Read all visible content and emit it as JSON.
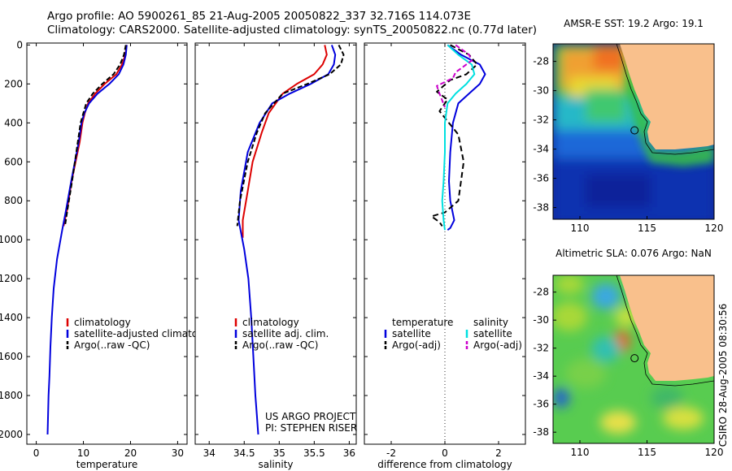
{
  "header": {
    "line1": "Argo profile: AO 5900261_85 21-Aug-2005 20050822_337 32.716S 114.073E",
    "line2": "Climatology: CARS2000. Satellite-adjusted climatology: synTS_20050822.nc (0.77d later)"
  },
  "side_label": "CSIRO 28-Aug-2005 08:30:56",
  "colors": {
    "climatology": "#dd0000",
    "satellite": "#0000dd",
    "argo": "#000000",
    "satellite_salinity": "#00e0e0",
    "argo_salinity": "#cc00cc",
    "land": "#f9c08c"
  },
  "chart_data": [
    {
      "type": "line",
      "xlabel": "temperature",
      "ylabel": "",
      "xlim": [
        -2,
        32
      ],
      "ylim": [
        2050,
        -10
      ],
      "y_reversed": true,
      "xticks": [
        0,
        10,
        20,
        30
      ],
      "yticks": [
        0,
        200,
        400,
        600,
        800,
        1000,
        1200,
        1400,
        1600,
        1800,
        2000
      ],
      "legend_position": "lower-right",
      "series": [
        {
          "name": "climatology",
          "color": "#dd0000",
          "dash": "",
          "x": [
            19.2,
            18.9,
            18.2,
            17.0,
            14.5,
            12.5,
            11.0,
            10.3,
            9.8,
            9.2,
            7.5,
            6.5,
            5.8
          ],
          "y": [
            0,
            50,
            100,
            150,
            200,
            250,
            300,
            350,
            400,
            500,
            700,
            850,
            930
          ]
        },
        {
          "name": "satellite-adjusted climatology",
          "color": "#0000dd",
          "dash": "",
          "x": [
            19.2,
            19.0,
            18.5,
            17.5,
            15.5,
            13.0,
            11.2,
            10.2,
            9.6,
            9.0,
            7.4,
            6.3,
            5.5,
            4.4,
            3.7,
            3.3,
            3.0,
            2.8,
            2.6,
            2.5,
            2.4
          ],
          "y": [
            0,
            50,
            100,
            150,
            200,
            250,
            300,
            350,
            400,
            500,
            700,
            850,
            950,
            1100,
            1250,
            1400,
            1550,
            1700,
            1800,
            1900,
            2000
          ]
        },
        {
          "name": "Argo(..raw -QC)",
          "color": "#000000",
          "dash": "6,3",
          "x": [
            19.0,
            18.6,
            17.8,
            16.4,
            14.0,
            12.0,
            10.6,
            10.0,
            9.4,
            8.8,
            7.6,
            6.6,
            6.1
          ],
          "y": [
            0,
            50,
            100,
            150,
            200,
            250,
            300,
            350,
            400,
            500,
            700,
            850,
            930
          ]
        }
      ],
      "legend": [
        "climatology",
        "satellite-adjusted climatology",
        "Argo(..raw -QC)"
      ]
    },
    {
      "type": "line",
      "xlabel": "salinity",
      "ylabel": "",
      "xlim": [
        33.8,
        36.1
      ],
      "ylim": [
        2050,
        -10
      ],
      "y_reversed": true,
      "xticks": [
        34,
        34.5,
        35,
        35.5,
        36
      ],
      "annotation": [
        "US ARGO PROJECT",
        "PI: STEPHEN RISER"
      ],
      "legend_position": "lower-right",
      "series": [
        {
          "name": "climatology",
          "color": "#dd0000",
          "dash": "",
          "x": [
            35.65,
            35.68,
            35.62,
            35.5,
            35.25,
            35.05,
            34.85,
            34.75,
            34.62,
            34.55,
            34.48,
            34.48
          ],
          "y": [
            0,
            50,
            100,
            150,
            200,
            250,
            350,
            450,
            600,
            750,
            900,
            990
          ]
        },
        {
          "name": "satellite adj. clim.",
          "color": "#0000dd",
          "dash": "",
          "x": [
            35.75,
            35.8,
            35.78,
            35.7,
            35.45,
            35.15,
            34.9,
            34.72,
            34.55,
            34.45,
            34.42,
            34.5,
            34.56,
            34.6,
            34.63,
            34.66,
            34.68,
            34.7
          ],
          "y": [
            0,
            50,
            100,
            150,
            200,
            250,
            300,
            400,
            550,
            750,
            900,
            1050,
            1200,
            1400,
            1600,
            1800,
            1900,
            2000
          ]
        },
        {
          "name": "Argo(..raw -QC)",
          "color": "#000000",
          "dash": "6,3",
          "x": [
            35.85,
            35.92,
            35.88,
            35.72,
            35.4,
            35.05,
            34.8,
            34.68,
            34.55,
            34.44,
            34.4
          ],
          "y": [
            0,
            50,
            100,
            150,
            200,
            250,
            350,
            450,
            600,
            800,
            930
          ]
        }
      ],
      "legend": [
        "climatology",
        "satellite adj. clim.",
        "Argo(..raw -QC)"
      ]
    },
    {
      "type": "line",
      "xlabel": "difference from climatology",
      "ylabel": "",
      "xlim": [
        -3,
        3
      ],
      "ylim": [
        2050,
        -10
      ],
      "y_reversed": true,
      "xticks": [
        -2,
        0,
        2
      ],
      "legend_position": "lower-right",
      "legend_headers": [
        "temperature",
        "salinity"
      ],
      "series": [
        {
          "name": "satellite",
          "group": "temperature",
          "color": "#0000dd",
          "dash": "",
          "x": [
            0.1,
            0.6,
            1.3,
            1.5,
            1.3,
            0.9,
            0.5,
            0.3,
            0.2,
            0.15,
            0.2,
            0.35,
            0.2,
            0.1
          ],
          "y": [
            0,
            50,
            100,
            150,
            200,
            250,
            300,
            400,
            550,
            700,
            800,
            900,
            940,
            950
          ]
        },
        {
          "name": "Argo(-adj)",
          "group": "temperature",
          "color": "#000000",
          "dash": "7,4",
          "x": [
            0.2,
            0.9,
            1.2,
            0.8,
            0.2,
            -0.3,
            0.1,
            -0.2,
            0.5,
            0.7,
            0.6,
            0.5,
            0.0,
            -0.5,
            -0.2,
            -0.1
          ],
          "y": [
            0,
            50,
            100,
            150,
            180,
            240,
            280,
            340,
            460,
            600,
            700,
            800,
            860,
            880,
            910,
            930
          ]
        },
        {
          "name": "satellite",
          "group": "salinity",
          "color": "#00e0e0",
          "dash": "",
          "x": [
            0.1,
            0.5,
            1.0,
            1.1,
            0.8,
            0.4,
            0.1,
            0.0,
            0.0,
            -0.05,
            -0.1,
            -0.05,
            0.0
          ],
          "y": [
            0,
            50,
            100,
            150,
            200,
            250,
            300,
            400,
            550,
            700,
            800,
            900,
            950
          ]
        },
        {
          "name": "Argo(-adj)",
          "group": "salinity",
          "color": "#cc00cc",
          "dash": "6,3",
          "x": [
            0.4,
            0.9,
            1.0,
            0.7,
            0.4,
            0.3,
            -0.3,
            -0.2,
            0.0
          ],
          "y": [
            0,
            50,
            80,
            110,
            140,
            170,
            210,
            250,
            320
          ]
        }
      ],
      "legend": [
        "satellite",
        "Argo(-adj)",
        "satellite",
        "Argo(-adj)"
      ]
    },
    {
      "type": "heatmap",
      "title": "AMSR-E SST: 19.2 Argo: 19.1",
      "xlim": [
        108,
        120
      ],
      "ylim": [
        -38.8,
        -26.8
      ],
      "xticks": [
        110,
        115,
        120
      ],
      "yticks": [
        -28,
        -30,
        -32,
        -34,
        -36,
        -38
      ],
      "marker": {
        "lon": 114.073,
        "lat": -32.716
      }
    },
    {
      "type": "heatmap",
      "title": "Altimetric SLA: 0.076 Argo: NaN",
      "xlim": [
        108,
        120
      ],
      "ylim": [
        -38.8,
        -26.8
      ],
      "xticks": [
        110,
        115,
        120
      ],
      "yticks": [
        -28,
        -30,
        -32,
        -34,
        -36,
        -38
      ],
      "marker": {
        "lon": 114.073,
        "lat": -32.716
      }
    }
  ]
}
